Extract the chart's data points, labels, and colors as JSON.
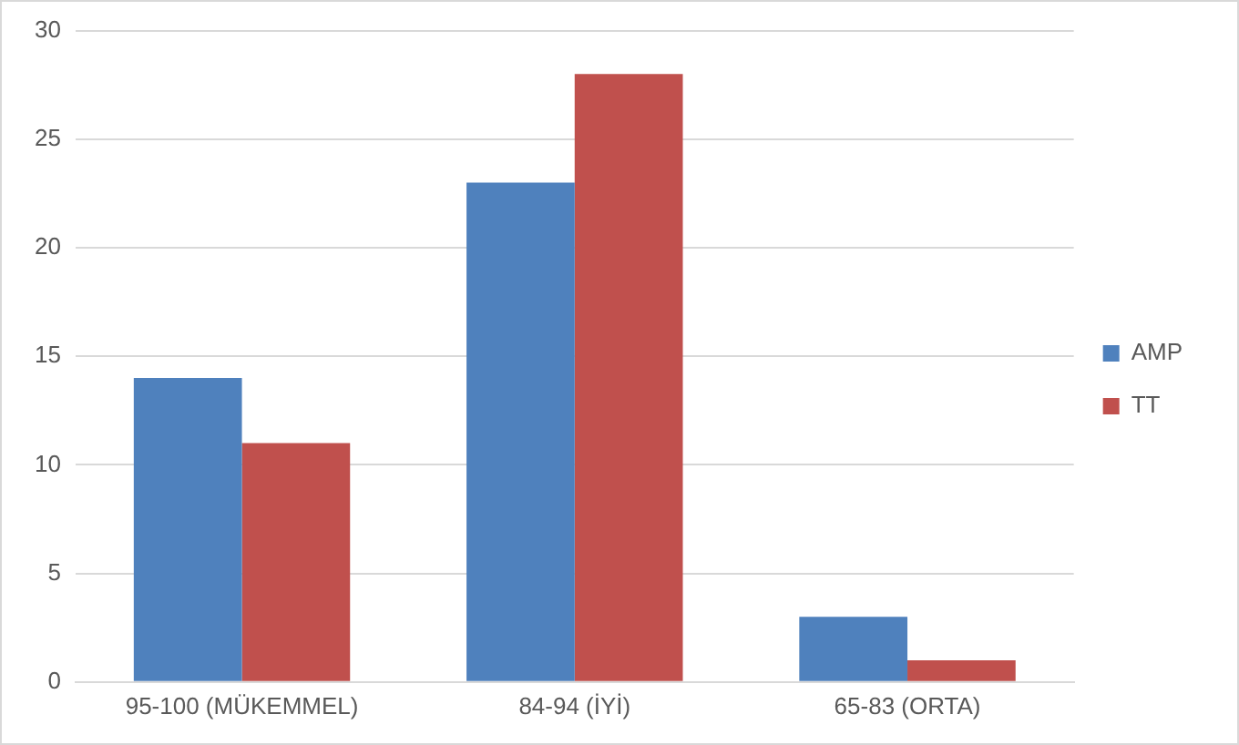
{
  "chart_data": {
    "type": "bar",
    "categories": [
      "95-100 (MÜKEMMEL)",
      "84-94 (İYİ)",
      "65-83 (ORTA)"
    ],
    "series": [
      {
        "name": "AMP",
        "color": "#4f81bd",
        "values": [
          14,
          23,
          3
        ]
      },
      {
        "name": "TT",
        "color": "#c0504d",
        "values": [
          11,
          28,
          1
        ]
      }
    ],
    "ylim": [
      0,
      30
    ],
    "yticks": [
      0,
      5,
      10,
      15,
      20,
      25,
      30
    ],
    "grid": "y",
    "legend": "right"
  }
}
